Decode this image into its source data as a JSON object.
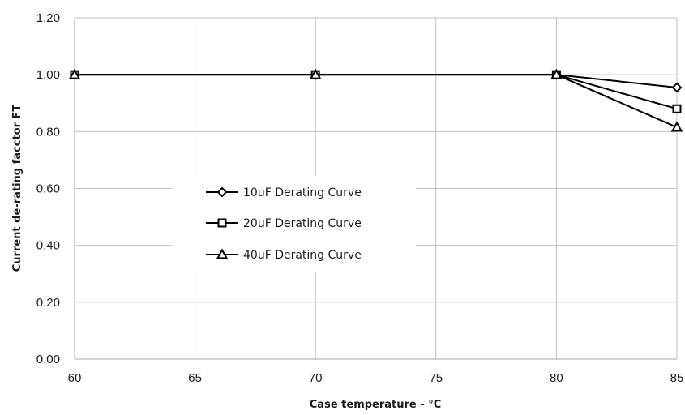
{
  "chart_data": {
    "type": "line",
    "xlabel": "Case temperature - ",
    "xlabel_unit": "°C",
    "ylabel": "Current de-rating facctor FT",
    "xlim": [
      60,
      85
    ],
    "ylim": [
      0,
      1.2
    ],
    "x_ticks": [
      60,
      65,
      70,
      75,
      80,
      85
    ],
    "y_ticks": [
      0,
      0.2,
      0.4,
      0.6,
      0.8,
      1.0,
      1.2
    ],
    "y_tick_labels": [
      "0.00",
      "0.20",
      "0.40",
      "0.60",
      "0.80",
      "1.00",
      "1.20"
    ],
    "grid": true,
    "legend_position": "center-left",
    "x": [
      60,
      70,
      80,
      85
    ],
    "series": [
      {
        "name": "10uF Derating Curve",
        "marker": "diamond",
        "values": [
          1.0,
          1.0,
          1.0,
          0.955
        ]
      },
      {
        "name": "20uF Derating Curve",
        "marker": "square",
        "values": [
          1.0,
          1.0,
          1.0,
          0.88
        ]
      },
      {
        "name": "40uF Derating Curve",
        "marker": "triangle",
        "values": [
          1.0,
          1.0,
          1.0,
          0.815
        ]
      }
    ],
    "colors": {
      "line": "#000000",
      "grid": "#bfbfbf",
      "marker_fill": "#ffffff"
    }
  }
}
